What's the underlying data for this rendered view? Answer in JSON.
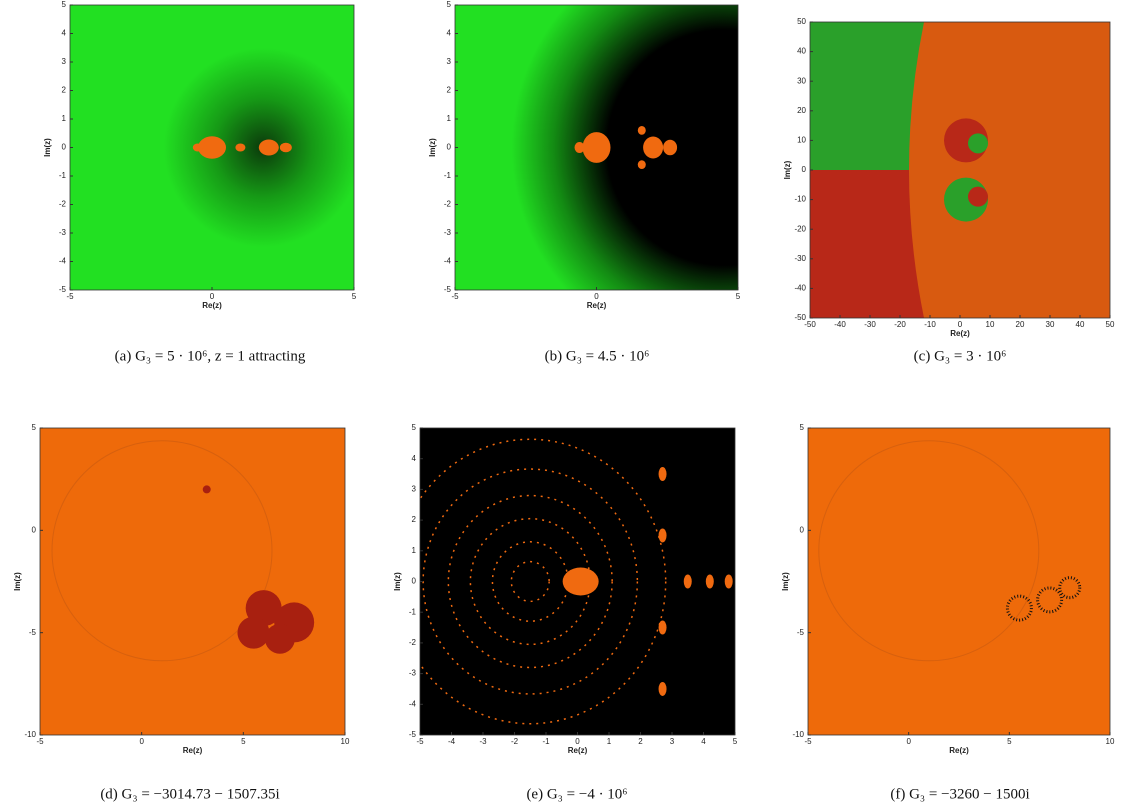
{
  "panels": [
    {
      "caption": "(a) G₃ = 5 · 10⁶, z = 1 attracting",
      "xlabel": "Re(z)",
      "ylabel": "Im(z)",
      "xlim": [
        -5,
        5
      ],
      "ylim": [
        -5,
        5
      ],
      "xticks": [
        -5,
        0,
        5
      ],
      "yticks": [
        -5,
        -4,
        -3,
        -2,
        -1,
        0,
        1,
        2,
        3,
        4,
        5
      ]
    },
    {
      "caption": "(b) G₃ = 4.5 · 10⁶",
      "xlabel": "Re(z)",
      "ylabel": "Im(z)",
      "xlim": [
        -5,
        5
      ],
      "ylim": [
        -5,
        5
      ],
      "xticks": [
        -5,
        0,
        5
      ],
      "yticks": [
        -5,
        -4,
        -3,
        -2,
        -1,
        0,
        1,
        2,
        3,
        4,
        5
      ]
    },
    {
      "caption": "(c) G₃ = 3 · 10⁶",
      "xlabel": "Re(z)",
      "ylabel": "Im(z)",
      "xlim": [
        -50,
        50
      ],
      "ylim": [
        -50,
        50
      ],
      "xticks": [
        -50,
        -40,
        -30,
        -20,
        -10,
        0,
        10,
        20,
        30,
        40,
        50
      ],
      "yticks": [
        -50,
        -40,
        -30,
        -20,
        -10,
        0,
        10,
        20,
        30,
        40,
        50
      ]
    },
    {
      "caption": "(d) G₃ = −3014.73 − 1507.35i",
      "xlabel": "Re(z)",
      "ylabel": "Im(z)",
      "xlim": [
        -5,
        10
      ],
      "ylim": [
        -10,
        5
      ],
      "xticks": [
        -5,
        0,
        5,
        10
      ],
      "yticks": [
        -10,
        -5,
        0,
        5
      ]
    },
    {
      "caption": "(e) G₃ = −4 · 10⁶",
      "xlabel": "Re(z)",
      "ylabel": "Im(z)",
      "xlim": [
        -5,
        5
      ],
      "ylim": [
        -5,
        5
      ],
      "xticks": [
        -5,
        -4,
        -3,
        -2,
        -1,
        0,
        1,
        2,
        3,
        4,
        5
      ],
      "yticks": [
        -5,
        -4,
        -3,
        -2,
        -1,
        0,
        1,
        2,
        3,
        4,
        5
      ]
    },
    {
      "caption": "(f) G₃ = −3260 − 1500i",
      "xlabel": "Re(z)",
      "ylabel": "Im(z)",
      "xlim": [
        -5,
        10
      ],
      "ylim": [
        -10,
        5
      ],
      "xticks": [
        -5,
        0,
        5,
        10
      ],
      "yticks": [
        -10,
        -5,
        0,
        5
      ]
    }
  ]
}
